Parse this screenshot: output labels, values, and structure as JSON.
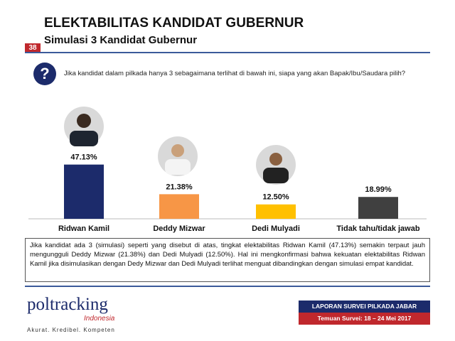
{
  "page_number": "38",
  "question": "Jika kandidat dalam pilkada hanya 3 sebagaimana terlihat di bawah ini, siapa yang akan Bapak/Ibu/Saudara pilih?",
  "chart_data": {
    "type": "bar",
    "title": "ELEKTABILITAS KANDIDAT GUBERNUR",
    "subtitle": "Simulasi 3 Kandidat Gubernur",
    "categories": [
      "Ridwan Kamil",
      "Deddy Mizwar",
      "Dedi Mulyadi",
      "Tidak tahu/tidak jawab"
    ],
    "values": [
      47.13,
      21.38,
      12.5,
      18.99
    ],
    "value_labels": [
      "47.13%",
      "21.38%",
      "12.50%",
      "18.99%"
    ],
    "colors": [
      "#1c2b6b",
      "#f79646",
      "#ffc000",
      "#404040"
    ]
  },
  "summary": "Jika kandidat ada 3 (simulasi) seperti yang disebut di atas, tingkat elektabilitas Ridwan Kamil (47.13%) semakin terpaut jauh mengungguli Deddy Mizwar (21.38%) dan Dedi Mulyadi (12.50%). Hal ini mengkonfirmasi bahwa kekuatan elektabilitas Ridwan Kamil jika disimulasikan dengan Dedy Mizwar dan Dedi Mulyadi terlihat menguat dibandingkan dengan simulasi empat kandidat.",
  "logo": {
    "name": "poltracking",
    "country": "Indonesia",
    "tagline": "Akurat. Kredibel. Kompeten"
  },
  "footer": {
    "report": "LAPORAN SURVEI PILKADA JABAR",
    "dates": "Temuan Survei: 18 – 24  Mei 2017"
  }
}
